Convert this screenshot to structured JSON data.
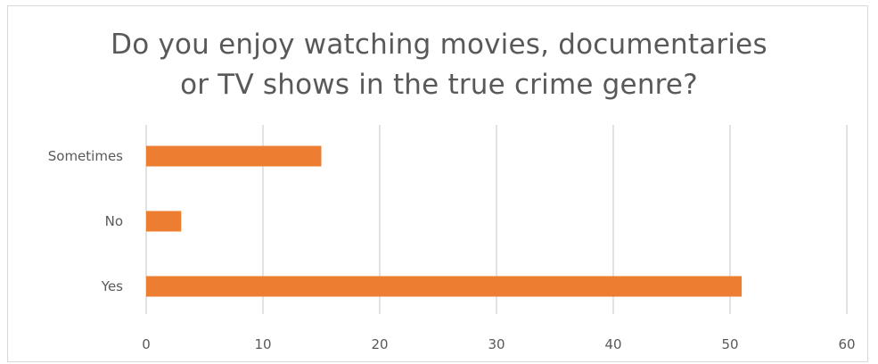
{
  "chart_data": {
    "type": "bar",
    "orientation": "horizontal",
    "title_lines": [
      "Do you enjoy watching movies, documentaries",
      "or TV shows in the true crime genre?"
    ],
    "categories": [
      "Sometimes",
      "No",
      "Yes"
    ],
    "values": [
      15,
      3,
      51
    ],
    "xlim": [
      0,
      60
    ],
    "xticks": [
      0,
      10,
      20,
      30,
      40,
      50,
      60
    ],
    "grid": "vertical",
    "legend": "none",
    "bar_color": "#ed7d31",
    "grid_color": "#d9d9d9"
  }
}
